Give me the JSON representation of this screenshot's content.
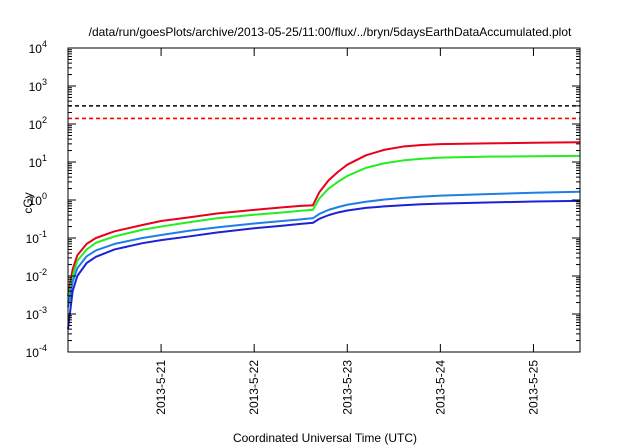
{
  "chart_data": {
    "type": "line",
    "title": "/data/run/goesPlots/archive/2013-05-25/11:00/flux/../bryn/5daysEarthDataAccumulated.plot",
    "xlabel": "Coordinated Universal Time (UTC)",
    "ylabel": "cGy",
    "yscale": "log",
    "ylim": [
      0.0001,
      10000
    ],
    "xlim": [
      0,
      5.5
    ],
    "x_unit": "days from 2013-5-20 00:00",
    "x_ticks": [
      {
        "x": 1,
        "label": "2013-5-21"
      },
      {
        "x": 2,
        "label": "2013-5-22"
      },
      {
        "x": 3,
        "label": "2013-5-23"
      },
      {
        "x": 4,
        "label": "2013-5-24"
      },
      {
        "x": 5,
        "label": "2013-5-25"
      }
    ],
    "y_ticks": [
      {
        "value": 0.0001,
        "base": "10",
        "exp": "-4"
      },
      {
        "value": 0.001,
        "base": "10",
        "exp": "-3"
      },
      {
        "value": 0.01,
        "base": "10",
        "exp": "-2"
      },
      {
        "value": 0.1,
        "base": "10",
        "exp": "-1"
      },
      {
        "value": 1,
        "base": "10",
        "exp": "0"
      },
      {
        "value": 10,
        "base": "10",
        "exp": "1"
      },
      {
        "value": 100,
        "base": "10",
        "exp": "2"
      },
      {
        "value": 1000,
        "base": "10",
        "exp": "3"
      },
      {
        "value": 10000,
        "base": "10",
        "exp": "4"
      }
    ],
    "grid": false,
    "legend": "none",
    "thresholds": [
      {
        "value": 300,
        "color": "#000000",
        "style": "dashed"
      },
      {
        "value": 140,
        "color": "#ff0000",
        "style": "dashed"
      }
    ],
    "series": [
      {
        "color": "#e8001c",
        "x": [
          0.0,
          0.05,
          0.1,
          0.2,
          0.3,
          0.5,
          0.8,
          1.0,
          1.3,
          1.6,
          2.0,
          2.3,
          2.5,
          2.62,
          2.63,
          2.7,
          2.8,
          2.9,
          3.0,
          3.2,
          3.4,
          3.6,
          3.8,
          4.0,
          4.5,
          5.0,
          5.5
        ],
        "y": [
          0.003,
          0.015,
          0.035,
          0.07,
          0.1,
          0.15,
          0.22,
          0.28,
          0.35,
          0.44,
          0.55,
          0.64,
          0.7,
          0.72,
          0.72,
          1.6,
          3.3,
          5.5,
          8.5,
          15,
          21,
          25.5,
          28,
          29.5,
          31,
          32,
          33
        ]
      },
      {
        "color": "#22ee22",
        "x": [
          0.0,
          0.05,
          0.1,
          0.2,
          0.3,
          0.5,
          0.8,
          1.0,
          1.3,
          1.6,
          2.0,
          2.3,
          2.5,
          2.62,
          2.63,
          2.7,
          2.8,
          2.9,
          3.0,
          3.2,
          3.4,
          3.6,
          3.8,
          4.0,
          4.5,
          5.0,
          5.5
        ],
        "y": [
          0.002,
          0.01,
          0.025,
          0.05,
          0.075,
          0.11,
          0.165,
          0.2,
          0.26,
          0.33,
          0.41,
          0.47,
          0.52,
          0.55,
          0.55,
          1.1,
          2.0,
          3.0,
          4.3,
          7.0,
          9.3,
          11,
          12.2,
          13,
          13.8,
          14.2,
          14.5
        ]
      },
      {
        "color": "#1e7fe6",
        "x": [
          0.0,
          0.05,
          0.1,
          0.2,
          0.3,
          0.5,
          0.8,
          1.0,
          1.3,
          1.6,
          2.0,
          2.3,
          2.5,
          2.62,
          2.63,
          2.7,
          2.8,
          2.9,
          3.0,
          3.2,
          3.4,
          3.6,
          3.8,
          4.0,
          4.5,
          5.0,
          5.5
        ],
        "y": [
          0.0015,
          0.007,
          0.016,
          0.033,
          0.047,
          0.07,
          0.1,
          0.12,
          0.155,
          0.19,
          0.24,
          0.28,
          0.31,
          0.33,
          0.33,
          0.43,
          0.55,
          0.65,
          0.75,
          0.9,
          1.03,
          1.14,
          1.23,
          1.3,
          1.43,
          1.55,
          1.65
        ]
      },
      {
        "color": "#1c22d6",
        "x": [
          0.0,
          0.05,
          0.1,
          0.2,
          0.3,
          0.5,
          0.8,
          1.0,
          1.3,
          1.6,
          2.0,
          2.3,
          2.5,
          2.62,
          2.63,
          2.7,
          2.8,
          2.9,
          3.0,
          3.2,
          3.4,
          3.6,
          3.8,
          4.0,
          4.5,
          5.0,
          5.5
        ],
        "y": [
          0.0004,
          0.004,
          0.01,
          0.022,
          0.032,
          0.05,
          0.073,
          0.088,
          0.11,
          0.14,
          0.18,
          0.21,
          0.235,
          0.25,
          0.25,
          0.32,
          0.4,
          0.47,
          0.53,
          0.62,
          0.68,
          0.73,
          0.77,
          0.8,
          0.86,
          0.91,
          0.95
        ]
      }
    ]
  }
}
